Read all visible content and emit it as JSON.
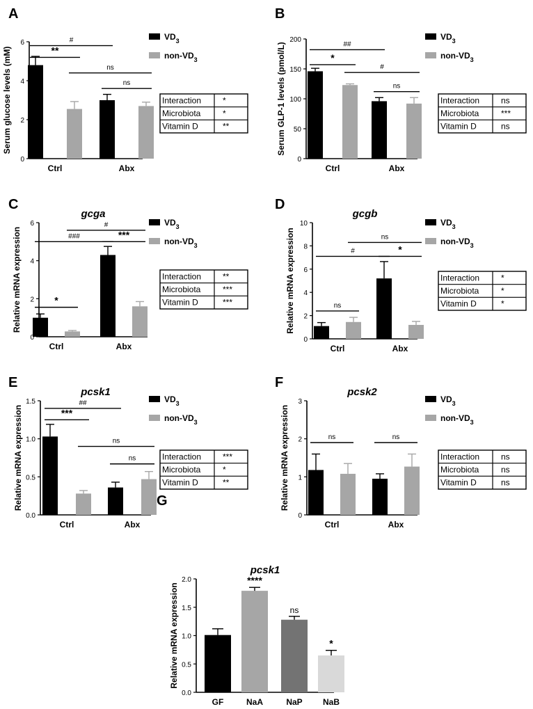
{
  "figure": {
    "legend_labels": {
      "vd3_base": "VD",
      "vd3_sub": "3",
      "nonvd3_base": "non-VD",
      "nonvd3_sub": "3"
    },
    "table_headers": {
      "interaction": "Interaction",
      "microbiota": "Microbiota",
      "vitamin_d": "Vitamin D"
    }
  },
  "colors": {
    "vd3": "#000000",
    "non_vd3": "#a6a6a6",
    "GF": "#000000",
    "NaA": "#a6a6a6",
    "NaP": "#737373",
    "NaB": "#d9d9d9"
  },
  "chart_data": [
    {
      "panel": "A",
      "type": "bar",
      "title": "",
      "ylabel": "Serum glucose levels (mM)",
      "xlabel": "",
      "categories": [
        "Ctrl",
        "Abx"
      ],
      "ylim": [
        0,
        6
      ],
      "yticks": [
        "0",
        "2",
        "4",
        "6"
      ],
      "ytick_values": [
        0,
        2,
        4,
        6
      ],
      "series": [
        {
          "name": "VD3",
          "values": [
            4.8,
            3.0
          ],
          "errors": [
            0.45,
            0.3
          ]
        },
        {
          "name": "non-VD3",
          "values": [
            2.55,
            2.7
          ],
          "errors": [
            0.38,
            0.2
          ]
        }
      ],
      "brackets": [
        {
          "from": 0,
          "to": 1,
          "y": 5.8,
          "label": "#",
          "bold": false
        },
        {
          "from": 0,
          "to": 0.5,
          "y": 5.2,
          "label": "**",
          "bold": true
        },
        {
          "from": 0.5,
          "to": 2,
          "y": 4.4,
          "label": "ns",
          "bold": false
        },
        {
          "from": 1.5,
          "to": 2,
          "y": 3.6,
          "label": "ns",
          "bold": false
        }
      ],
      "stats": [
        {
          "factor": "Interaction",
          "value": "*"
        },
        {
          "factor": "Microbiota",
          "value": "*"
        },
        {
          "factor": "Vitamin D",
          "value": "**"
        }
      ]
    },
    {
      "panel": "B",
      "type": "bar",
      "title": "",
      "ylabel": "Serum GLP-1 levels (pmol/L)",
      "xlabel": "",
      "categories": [
        "Ctrl",
        "Abx"
      ],
      "ylim": [
        0,
        200
      ],
      "yticks": [
        "0",
        "50",
        "100",
        "150",
        "200"
      ],
      "ytick_values": [
        0,
        50,
        100,
        150,
        200
      ],
      "series": [
        {
          "name": "VD3",
          "values": [
            146,
            96
          ],
          "errors": [
            5,
            6
          ]
        },
        {
          "name": "non-VD3",
          "values": [
            123,
            92
          ],
          "errors": [
            2,
            10
          ]
        }
      ],
      "brackets": [
        {
          "from": 0,
          "to": 1,
          "y": 182,
          "label": "##",
          "bold": false
        },
        {
          "from": 0,
          "to": 0.5,
          "y": 157,
          "label": "*",
          "bold": true
        },
        {
          "from": 0.5,
          "to": 2,
          "y": 144,
          "label": "#",
          "bold": false
        },
        {
          "from": 1.5,
          "to": 2,
          "y": 112,
          "label": "ns",
          "bold": false
        }
      ],
      "stats": [
        {
          "factor": "Interaction",
          "value": "ns"
        },
        {
          "factor": "Microbiota",
          "value": "***"
        },
        {
          "factor": "Vitamin D",
          "value": "ns"
        }
      ]
    },
    {
      "panel": "C",
      "type": "bar",
      "title": "gcga",
      "ylabel": "Relative mRNA expression",
      "xlabel": "",
      "categories": [
        "Ctrl",
        "Abx"
      ],
      "ylim": [
        0,
        6
      ],
      "yticks": [
        "0",
        "2",
        "4",
        "6"
      ],
      "ytick_values": [
        0,
        2,
        4,
        6
      ],
      "series": [
        {
          "name": "VD3",
          "values": [
            1.0,
            4.3
          ],
          "errors": [
            0.2,
            0.45
          ]
        },
        {
          "name": "non-VD3",
          "values": [
            0.28,
            1.6
          ],
          "errors": [
            0.05,
            0.25
          ]
        }
      ],
      "brackets": [
        {
          "from": 0.5,
          "to": 2,
          "y": 5.6,
          "label": "#",
          "bold": false
        },
        {
          "from": 0,
          "to": 1.5,
          "y": 5.0,
          "label": "###",
          "bold": false
        },
        {
          "from": 1.5,
          "to": 2,
          "y": 5.0,
          "label": "***",
          "bold": true
        },
        {
          "from": 0,
          "to": 0.5,
          "y": 1.55,
          "label": "*",
          "bold": true
        }
      ],
      "stats": [
        {
          "factor": "Interaction",
          "value": "**"
        },
        {
          "factor": "Microbiota",
          "value": "***"
        },
        {
          "factor": "Vitamin D",
          "value": "***"
        }
      ]
    },
    {
      "panel": "D",
      "type": "bar",
      "title": "gcgb",
      "ylabel": "Relative mRNA expression",
      "xlabel": "",
      "categories": [
        "Ctrl",
        "Abx"
      ],
      "ylim": [
        0,
        10
      ],
      "yticks": [
        "0",
        "2",
        "4",
        "6",
        "8",
        "10"
      ],
      "ytick_values": [
        0,
        2,
        4,
        6,
        8,
        10
      ],
      "series": [
        {
          "name": "VD3",
          "values": [
            1.1,
            5.2
          ],
          "errors": [
            0.3,
            1.45
          ]
        },
        {
          "name": "non-VD3",
          "values": [
            1.45,
            1.2
          ],
          "errors": [
            0.4,
            0.3
          ]
        }
      ],
      "brackets": [
        {
          "from": 0.5,
          "to": 2,
          "y": 8.3,
          "label": "ns",
          "bold": false
        },
        {
          "from": 0,
          "to": 1.5,
          "y": 7.1,
          "label": "#",
          "bold": false
        },
        {
          "from": 1.5,
          "to": 2,
          "y": 7.1,
          "label": "*",
          "bold": true
        },
        {
          "from": 0,
          "to": 0.5,
          "y": 2.4,
          "label": "ns",
          "bold": false
        }
      ],
      "stats": [
        {
          "factor": "Interaction",
          "value": "*"
        },
        {
          "factor": "Microbiota",
          "value": "*"
        },
        {
          "factor": "Vitamin D",
          "value": "*"
        }
      ]
    },
    {
      "panel": "E",
      "type": "bar",
      "title": "pcsk1",
      "ylabel": "Relative mRNA expression",
      "xlabel": "",
      "categories": [
        "Ctrl",
        "Abx"
      ],
      "ylim": [
        0,
        1.5
      ],
      "yticks": [
        "0.0",
        "0.5",
        "1.0",
        "1.5"
      ],
      "ytick_values": [
        0,
        0.5,
        1.0,
        1.5
      ],
      "series": [
        {
          "name": "VD3",
          "values": [
            1.03,
            0.36
          ],
          "errors": [
            0.16,
            0.07
          ]
        },
        {
          "name": "non-VD3",
          "values": [
            0.28,
            0.47
          ],
          "errors": [
            0.04,
            0.1
          ]
        }
      ],
      "brackets": [
        {
          "from": 0,
          "to": 1,
          "y": 1.4,
          "label": "##",
          "bold": false
        },
        {
          "from": 0,
          "to": 0.5,
          "y": 1.25,
          "label": "***",
          "bold": true
        },
        {
          "from": 0.5,
          "to": 2,
          "y": 0.9,
          "label": "ns",
          "bold": false
        },
        {
          "from": 1.5,
          "to": 2,
          "y": 0.67,
          "label": "ns",
          "bold": false
        }
      ],
      "stats": [
        {
          "factor": "Interaction",
          "value": "***"
        },
        {
          "factor": "Microbiota",
          "value": "*"
        },
        {
          "factor": "Vitamin D",
          "value": "**"
        }
      ]
    },
    {
      "panel": "F",
      "type": "bar",
      "title": "pcsk2",
      "ylabel": "Relative mRNA expression",
      "xlabel": "",
      "categories": [
        "Ctrl",
        "Abx"
      ],
      "ylim": [
        0,
        3
      ],
      "yticks": [
        "0",
        "1",
        "2",
        "3"
      ],
      "ytick_values": [
        0,
        1,
        2,
        3
      ],
      "series": [
        {
          "name": "VD3",
          "values": [
            1.18,
            0.95
          ],
          "errors": [
            0.42,
            0.13
          ]
        },
        {
          "name": "non-VD3",
          "values": [
            1.08,
            1.27
          ],
          "errors": [
            0.27,
            0.33
          ]
        }
      ],
      "brackets": [
        {
          "from": 0,
          "to": 0.5,
          "y": 1.9,
          "label": "ns",
          "bold": false
        },
        {
          "from": 1.5,
          "to": 2,
          "y": 1.9,
          "label": "ns",
          "bold": false
        }
      ],
      "stats": [
        {
          "factor": "Interaction",
          "value": "ns"
        },
        {
          "factor": "Microbiota",
          "value": "ns"
        },
        {
          "factor": "Vitamin D",
          "value": "ns"
        }
      ]
    },
    {
      "panel": "G",
      "type": "bar",
      "title": "pcsk1",
      "ylabel": "Relative mRNA expression",
      "xlabel": "",
      "categories": [
        "GF",
        "NaA",
        "NaP",
        "NaB"
      ],
      "ylim": [
        0,
        2.0
      ],
      "yticks": [
        "0.0",
        "0.5",
        "1.0",
        "1.5",
        "2.0"
      ],
      "ytick_values": [
        0,
        0.5,
        1.0,
        1.5,
        2.0
      ],
      "values": [
        1.01,
        1.79,
        1.28,
        0.65
      ],
      "errors": [
        0.11,
        0.06,
        0.06,
        0.09
      ],
      "annotations": [
        "",
        "****",
        "ns",
        "*"
      ]
    }
  ]
}
